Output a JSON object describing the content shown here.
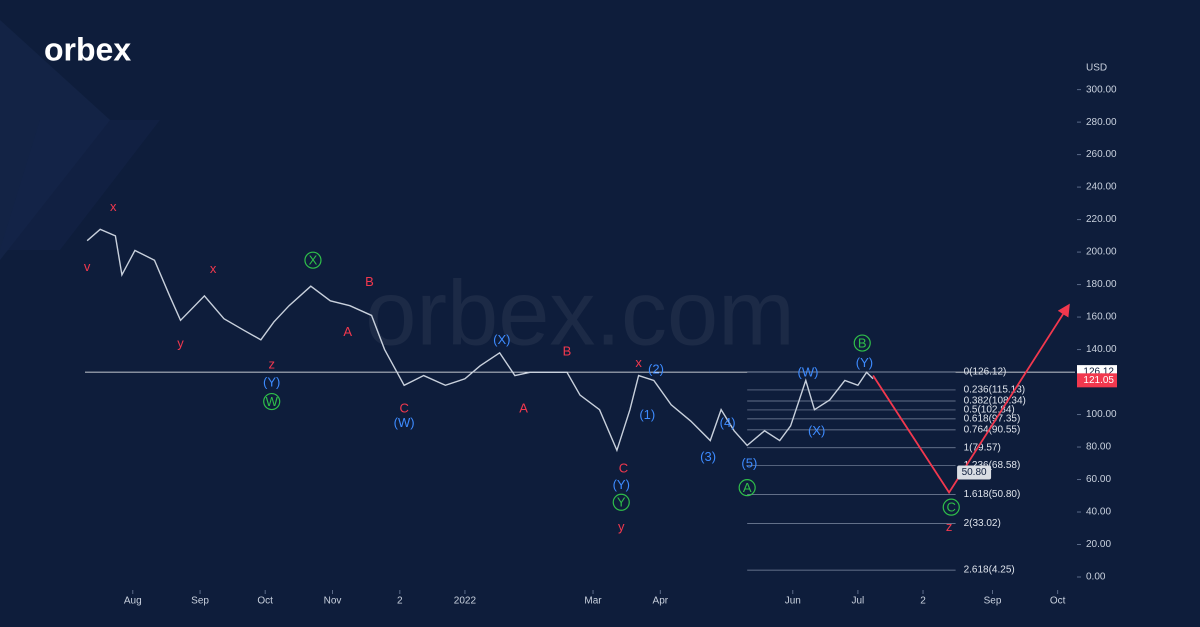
{
  "logo": "orbex",
  "watermark": "orbex.com",
  "chart_data": {
    "type": "line",
    "axis_label": "USD",
    "xlim": [
      9,
      465
    ],
    "ylim": [
      -8,
      317
    ],
    "xticks": [
      {
        "value": 31,
        "label": "Aug"
      },
      {
        "value": 62,
        "label": "Sep"
      },
      {
        "value": 92,
        "label": "Oct"
      },
      {
        "value": 123,
        "label": "Nov"
      },
      {
        "value": 154,
        "label": "2"
      },
      {
        "value": 184,
        "label": "2022"
      },
      {
        "value": 243,
        "label": "Mar"
      },
      {
        "value": 274,
        "label": "Apr"
      },
      {
        "value": 335,
        "label": "Jun"
      },
      {
        "value": 365,
        "label": "Jul"
      },
      {
        "value": 395,
        "label": "2"
      },
      {
        "value": 427,
        "label": "Sep"
      },
      {
        "value": 457,
        "label": "Oct"
      }
    ],
    "yticks": [
      {
        "value": 0,
        "label": "0.00"
      },
      {
        "value": 20,
        "label": "20.00"
      },
      {
        "value": 40,
        "label": "40.00"
      },
      {
        "value": 60,
        "label": "60.00"
      },
      {
        "value": 80,
        "label": "80.00"
      },
      {
        "value": 100,
        "label": "100.00"
      },
      {
        "value": 120,
        "label": "120.00"
      },
      {
        "value": 140,
        "label": "140.00"
      },
      {
        "value": 160,
        "label": "160.00"
      },
      {
        "value": 180,
        "label": "180.00"
      },
      {
        "value": 200,
        "label": "200.00"
      },
      {
        "value": 220,
        "label": "220.00"
      },
      {
        "value": 240,
        "label": "240.00"
      },
      {
        "value": 260,
        "label": "260.00"
      },
      {
        "value": 280,
        "label": "280.00"
      },
      {
        "value": 300,
        "label": "300.00"
      }
    ],
    "series": [
      {
        "color": "#c8d0dc",
        "x": [
          10,
          16,
          23,
          26,
          32,
          41,
          48,
          53,
          64,
          73,
          82,
          90,
          96,
          103,
          113,
          122,
          131,
          141,
          147,
          156,
          165,
          175,
          184,
          191,
          200,
          207,
          214,
          223,
          231,
          237,
          246,
          254,
          260,
          264,
          271,
          279,
          288,
          297,
          302,
          308,
          314,
          322,
          329,
          334,
          341,
          345,
          352,
          359,
          365,
          369,
          372
        ],
        "values": [
          207,
          214,
          210,
          186,
          201,
          195,
          173,
          158,
          173,
          159,
          152,
          146,
          157,
          167,
          179,
          170,
          167,
          161,
          140,
          118,
          124,
          118,
          122,
          130,
          138,
          124,
          126,
          126,
          126,
          112,
          103,
          78,
          103,
          124,
          121,
          106,
          96,
          84,
          103,
          90,
          81,
          90,
          84,
          93,
          121,
          103,
          109,
          121,
          118,
          126,
          122
        ]
      },
      {
        "color": "#f2384e",
        "x": [
          372,
          407,
          462
        ],
        "values": [
          124,
          52,
          167
        ]
      }
    ],
    "reference_line": {
      "value": 126.12,
      "color": "#ffffff"
    },
    "fib_range": [
      314,
      410
    ],
    "fib_levels": [
      {
        "value": 126.12,
        "label": "0(126.12)"
      },
      {
        "value": 115.13,
        "label": "0.236(115.13)"
      },
      {
        "value": 108.34,
        "label": "0.382(108.34)"
      },
      {
        "value": 102.84,
        "label": "0.5(102.84)"
      },
      {
        "value": 97.35,
        "label": "0.618(97.35)"
      },
      {
        "value": 90.55,
        "label": "0.764(90.55)"
      },
      {
        "value": 79.57,
        "label": "1(79.57)"
      },
      {
        "value": 68.58,
        "label": "1.236(68.58)"
      },
      {
        "value": 50.8,
        "label": "1.618(50.80)"
      },
      {
        "value": 33.02,
        "label": "2(33.02)"
      },
      {
        "value": 4.25,
        "label": "2.618(4.25)"
      }
    ],
    "price_tags": [
      {
        "value": 126.12,
        "color": "#ffffff"
      },
      {
        "value": 121.05,
        "color": "#f2384e"
      }
    ],
    "target_tag": {
      "value": 50.8,
      "label": "50.80"
    },
    "wave_labels": [
      {
        "color": "#f2384e",
        "circled": false,
        "labels": [
          {
            "text": "x",
            "x": 22,
            "y": 228
          },
          {
            "text": "v",
            "x": 10,
            "y": 191
          },
          {
            "text": "x",
            "x": 68,
            "y": 190
          },
          {
            "text": "y",
            "x": 53,
            "y": 144
          },
          {
            "text": "z",
            "x": 95,
            "y": 131
          },
          {
            "text": "A",
            "x": 130,
            "y": 151
          },
          {
            "text": "B",
            "x": 140,
            "y": 182
          },
          {
            "text": "C",
            "x": 156,
            "y": 104
          },
          {
            "text": "A",
            "x": 211,
            "y": 104
          },
          {
            "text": "B",
            "x": 231,
            "y": 139
          },
          {
            "text": "x",
            "x": 264,
            "y": 132
          },
          {
            "text": "C",
            "x": 257,
            "y": 67
          },
          {
            "text": "y",
            "x": 256,
            "y": 31
          },
          {
            "text": "z",
            "x": 407,
            "y": 31
          }
        ]
      },
      {
        "color": "#3d8bff",
        "circled": false,
        "labels": [
          {
            "text": "(Y)",
            "x": 95,
            "y": 120
          },
          {
            "text": "(W)",
            "x": 156,
            "y": 95
          },
          {
            "text": "(X)",
            "x": 201,
            "y": 146
          },
          {
            "text": "(2)",
            "x": 272,
            "y": 128
          },
          {
            "text": "(1)",
            "x": 268,
            "y": 100
          },
          {
            "text": "(3)",
            "x": 296,
            "y": 74
          },
          {
            "text": "(4)",
            "x": 305,
            "y": 95
          },
          {
            "text": "(5)",
            "x": 315,
            "y": 70
          },
          {
            "text": "(W)",
            "x": 342,
            "y": 126
          },
          {
            "text": "(X)",
            "x": 346,
            "y": 90
          },
          {
            "text": "(Y)",
            "x": 368,
            "y": 132
          },
          {
            "text": "(Y)",
            "x": 256,
            "y": 57
          }
        ]
      },
      {
        "color": "#2fbf4a",
        "circled": true,
        "labels": [
          {
            "text": "W",
            "x": 95,
            "y": 108
          },
          {
            "text": "X",
            "x": 114,
            "y": 195
          },
          {
            "text": "Y",
            "x": 256,
            "y": 46
          },
          {
            "text": "A",
            "x": 314,
            "y": 55
          },
          {
            "text": "B",
            "x": 367,
            "y": 144
          },
          {
            "text": "C",
            "x": 408,
            "y": 43
          }
        ]
      }
    ]
  }
}
